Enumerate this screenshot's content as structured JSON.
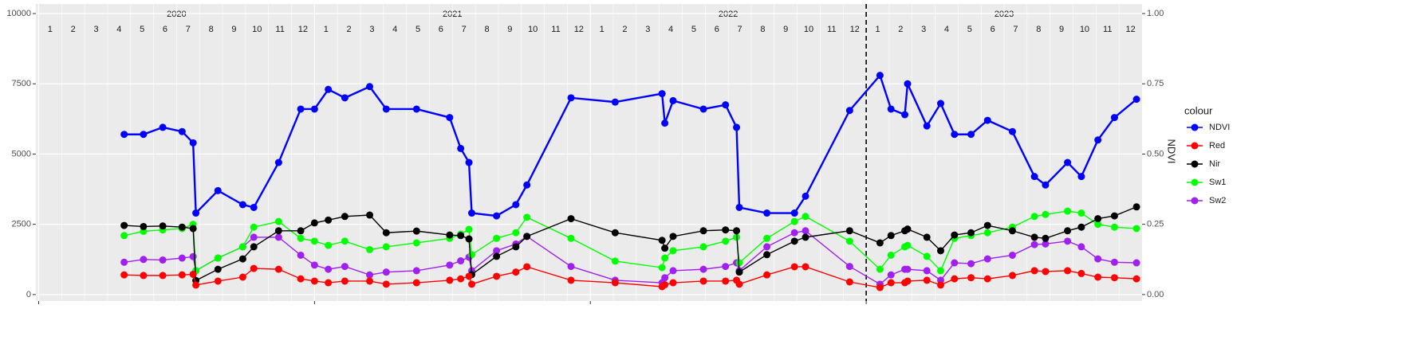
{
  "chart_data": {
    "type": "line",
    "years": [
      "2020",
      "2021",
      "2022",
      "2023"
    ],
    "months": [
      "1",
      "2",
      "3",
      "4",
      "5",
      "6",
      "7",
      "8",
      "9",
      "10",
      "11",
      "12"
    ],
    "y2label": "NDVI",
    "legend_title": "colour",
    "vline": 2023,
    "x": [
      2020.31,
      2020.38,
      2020.45,
      2020.52,
      2020.56,
      2020.57,
      2020.65,
      2020.74,
      2020.78,
      2020.87,
      2020.95,
      2021.0,
      2021.05,
      2021.11,
      2021.2,
      2021.26,
      2021.37,
      2021.49,
      2021.53,
      2021.56,
      2021.57,
      2021.66,
      2021.73,
      2021.77,
      2021.93,
      2022.09,
      2022.26,
      2022.27,
      2022.3,
      2022.41,
      2022.49,
      2022.53,
      2022.54,
      2022.64,
      2022.74,
      2022.78,
      2022.94,
      2023.05,
      2023.09,
      2023.14,
      2023.15,
      2023.22,
      2023.27,
      2023.32,
      2023.38,
      2023.44,
      2023.53,
      2023.61,
      2023.65,
      2023.73,
      2023.78,
      2023.84,
      2023.9,
      2023.98
    ],
    "xlim": [
      2019.99,
      2024.0
    ],
    "xticks": [
      2020,
      2021,
      2022,
      2023
    ],
    "ylim": [
      -230,
      10340
    ],
    "yticks": [
      0,
      2500,
      5000,
      7500,
      10000
    ],
    "y2lim": [
      -0.023,
      1.034
    ],
    "y2ticks": [
      {
        "value": 0,
        "label": "0.00"
      },
      {
        "value": 0.25,
        "label": "0.25"
      },
      {
        "value": 0.5,
        "label": "0.50"
      },
      {
        "value": 0.75,
        "label": "0.75"
      },
      {
        "value": 1,
        "label": "1.00"
      }
    ],
    "grid": true,
    "series": [
      {
        "name": "NDVI",
        "color": "#0000ff",
        "axis": "y2",
        "values": [
          0.57,
          0.57,
          0.595,
          0.58,
          0.54,
          0.29,
          0.37,
          0.32,
          0.31,
          0.47,
          0.66,
          0.66,
          0.73,
          0.7,
          0.74,
          0.66,
          0.66,
          0.63,
          0.52,
          0.47,
          0.29,
          0.28,
          0.32,
          0.39,
          0.7,
          0.685,
          0.715,
          0.61,
          0.69,
          0.66,
          0.675,
          0.595,
          0.31,
          0.29,
          0.29,
          0.35,
          0.655,
          0.78,
          0.66,
          0.64,
          0.75,
          0.6,
          0.68,
          0.57,
          0.57,
          0.62,
          0.58,
          0.42,
          0.39,
          0.47,
          0.42,
          0.55,
          0.63,
          0.695
        ]
      },
      {
        "name": "Red",
        "color": "#ff0000",
        "values": [
          700,
          680,
          680,
          700,
          720,
          340,
          480,
          620,
          930,
          900,
          560,
          480,
          420,
          480,
          480,
          370,
          420,
          510,
          560,
          650,
          370,
          650,
          800,
          990,
          510,
          420,
          280,
          350,
          420,
          480,
          480,
          510,
          370,
          700,
          990,
          990,
          450,
          250,
          420,
          420,
          480,
          510,
          340,
          560,
          600,
          560,
          680,
          850,
          820,
          850,
          750,
          620,
          600,
          560
        ]
      },
      {
        "name": "Nir",
        "color": "#000000",
        "values": [
          2460,
          2420,
          2440,
          2400,
          2350,
          500,
          900,
          1270,
          1700,
          2270,
          2270,
          2550,
          2650,
          2780,
          2830,
          2200,
          2260,
          2120,
          2100,
          1980,
          710,
          1360,
          1700,
          2070,
          2700,
          2200,
          1930,
          1650,
          2070,
          2270,
          2300,
          2270,
          800,
          1420,
          1900,
          2040,
          2270,
          1840,
          2100,
          2270,
          2330,
          2040,
          1560,
          2120,
          2200,
          2460,
          2270,
          2040,
          2000,
          2270,
          2400,
          2700,
          2800,
          3120
        ]
      },
      {
        "name": "Sw1",
        "color": "#00ff00",
        "values": [
          2100,
          2250,
          2300,
          2350,
          2500,
          850,
          1300,
          1700,
          2400,
          2600,
          2000,
          1900,
          1750,
          1900,
          1600,
          1700,
          1840,
          2000,
          2150,
          2320,
          1420,
          2000,
          2200,
          2750,
          2000,
          1190,
          960,
          1300,
          1560,
          1700,
          1900,
          2040,
          1130,
          2000,
          2600,
          2780,
          1900,
          900,
          1400,
          1700,
          1750,
          1360,
          850,
          2000,
          2100,
          2200,
          2400,
          2780,
          2850,
          2970,
          2900,
          2500,
          2400,
          2350
        ]
      },
      {
        "name": "Sw2",
        "color": "#a020f0",
        "values": [
          1150,
          1250,
          1230,
          1300,
          1350,
          850,
          1300,
          1700,
          2040,
          2040,
          1400,
          1050,
          900,
          1000,
          700,
          800,
          850,
          1050,
          1200,
          1330,
          850,
          1560,
          1800,
          2070,
          1000,
          510,
          420,
          600,
          850,
          900,
          1000,
          1130,
          850,
          1700,
          2200,
          2270,
          1000,
          370,
          700,
          900,
          900,
          850,
          510,
          1130,
          1100,
          1270,
          1400,
          1780,
          1800,
          1900,
          1700,
          1270,
          1150,
          1130
        ]
      }
    ]
  }
}
